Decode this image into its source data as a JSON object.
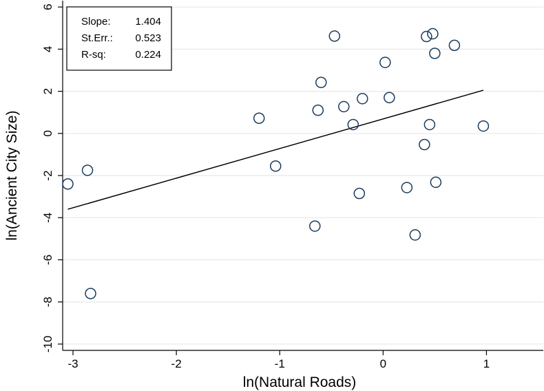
{
  "chart_data": {
    "type": "scatter",
    "xlabel": "ln(Natural Roads)",
    "ylabel": "ln(Ancient City Size)",
    "xlim": [
      -3.1,
      1.55
    ],
    "ylim": [
      -10.3,
      6.3
    ],
    "xticks": [
      -3,
      -2,
      -1,
      0,
      1
    ],
    "yticks": [
      -10,
      -8,
      -6,
      -4,
      -2,
      0,
      2,
      4,
      6
    ],
    "x_tick_labels": [
      "-3",
      "-2",
      "-1",
      "0",
      "1"
    ],
    "y_tick_labels": [
      "-10",
      "-8",
      "-6",
      "-4",
      "-2",
      "0",
      "2",
      "4",
      "6"
    ],
    "grid": "horizontal",
    "legend": "none",
    "points": [
      {
        "x": -3.05,
        "y": -2.4
      },
      {
        "x": -2.86,
        "y": -1.75
      },
      {
        "x": -2.83,
        "y": -7.6
      },
      {
        "x": -1.2,
        "y": 0.72
      },
      {
        "x": -1.04,
        "y": -1.55
      },
      {
        "x": -0.66,
        "y": -4.4
      },
      {
        "x": -0.63,
        "y": 1.1
      },
      {
        "x": -0.6,
        "y": 2.42
      },
      {
        "x": -0.47,
        "y": 4.62
      },
      {
        "x": -0.38,
        "y": 1.27
      },
      {
        "x": -0.29,
        "y": 0.42
      },
      {
        "x": -0.23,
        "y": -2.85
      },
      {
        "x": -0.2,
        "y": 1.65
      },
      {
        "x": 0.02,
        "y": 3.37
      },
      {
        "x": 0.06,
        "y": 1.7
      },
      {
        "x": 0.23,
        "y": -2.57
      },
      {
        "x": 0.31,
        "y": -4.82
      },
      {
        "x": 0.4,
        "y": -0.53
      },
      {
        "x": 0.42,
        "y": 4.6
      },
      {
        "x": 0.45,
        "y": 0.42
      },
      {
        "x": 0.48,
        "y": 4.73
      },
      {
        "x": 0.5,
        "y": 3.8
      },
      {
        "x": 0.51,
        "y": -2.32
      },
      {
        "x": 0.69,
        "y": 4.18
      },
      {
        "x": 0.97,
        "y": 0.35
      }
    ],
    "fit_line": {
      "x": [
        -3.05,
        0.97
      ],
      "y": [
        -3.6,
        2.05
      ]
    },
    "stats": [
      {
        "label": "Slope:",
        "value": "1.404"
      },
      {
        "label": "St.Err.:",
        "value": "0.523"
      },
      {
        "label": "R-sq:",
        "value": "0.224"
      }
    ],
    "colors": {
      "marker": "#1a3a5c",
      "grid": "#e8e8e8",
      "axis": "#000000"
    }
  }
}
